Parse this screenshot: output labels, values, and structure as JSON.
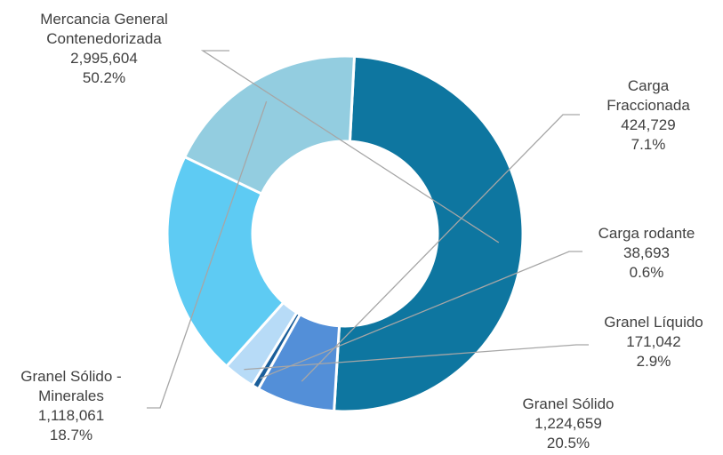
{
  "chart_data": {
    "type": "pie",
    "donut": true,
    "start_angle_deg": 87,
    "slices": [
      {
        "name": "Mercancia General Contenedorizada",
        "lines": [
          "Mercancia General",
          "Contenedorizada"
        ],
        "value_label": "2,995,604",
        "pct_label": "50.2%",
        "value": 2995604,
        "pct": 50.2,
        "color": "#0e76a0"
      },
      {
        "name": "Carga Fraccionada",
        "lines": [
          "Carga",
          "Fraccionada"
        ],
        "value_label": "424,729",
        "pct_label": "7.1%",
        "value": 424729,
        "pct": 7.1,
        "color": "#538fd8"
      },
      {
        "name": "Carga rodante",
        "lines": [
          "Carga rodante"
        ],
        "value_label": "38,693",
        "pct_label": "0.6%",
        "value": 38693,
        "pct": 0.6,
        "color": "#1a5e9a"
      },
      {
        "name": "Granel Líquido",
        "lines": [
          "Granel Líquido"
        ],
        "value_label": "171,042",
        "pct_label": "2.9%",
        "value": 171042,
        "pct": 2.9,
        "color": "#b7dbf7"
      },
      {
        "name": "Granel Sólido",
        "lines": [
          "Granel Sólido"
        ],
        "value_label": "1,224,659",
        "pct_label": "20.5%",
        "value": 1224659,
        "pct": 20.5,
        "color": "#5ecbf3"
      },
      {
        "name": "Granel Sólido - Minerales",
        "lines": [
          "Granel Sólido -",
          "Minerales"
        ],
        "value_label": "1,118,061",
        "pct_label": "18.7%",
        "value": 1118061,
        "pct": 18.7,
        "color": "#93cde0"
      }
    ]
  }
}
